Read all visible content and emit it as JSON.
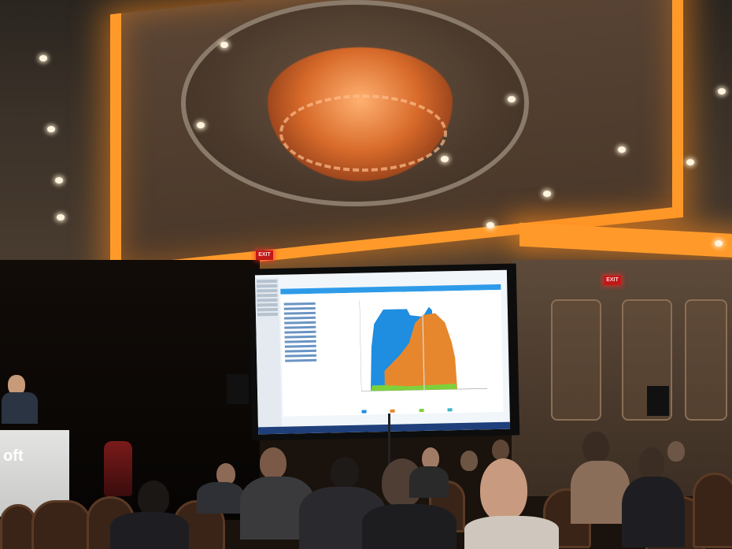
{
  "scene": {
    "description_hidden": true,
    "podium_logo_text": "oft",
    "exit_sign_text": "EXIT"
  },
  "colors": {
    "cove_light": "#ff9a2a",
    "screen_bg": "#f1f6fb",
    "chart_blue": "#1f8de0",
    "chart_orange": "#e6872e",
    "chart_green": "#7fd13b",
    "exit_red": "#c01818"
  },
  "icons": [
    "exit-sign",
    "microphone",
    "speaker"
  ]
}
